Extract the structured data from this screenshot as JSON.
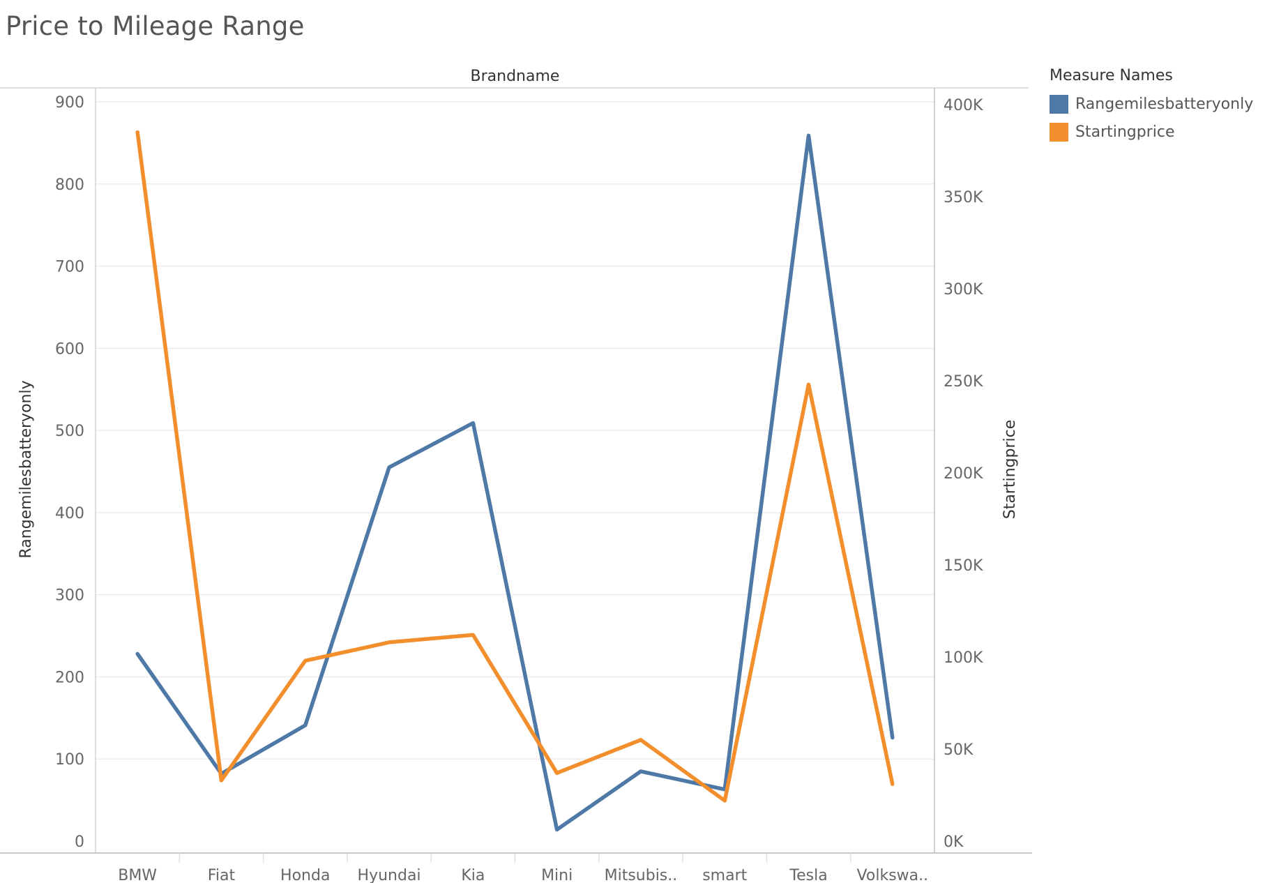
{
  "title": "Price to Mileage Range",
  "legend": {
    "title": "Measure Names",
    "items": [
      {
        "label": "Rangemilesbatteryonly",
        "color": "#4e79a7"
      },
      {
        "label": "Startingprice",
        "color": "#f28e2b"
      }
    ]
  },
  "chart_data": {
    "type": "line",
    "header": "Brandname",
    "categories": [
      "BMW",
      "Fiat",
      "Honda",
      "Hyundai",
      "Kia",
      "Mini",
      "Mitsubis..",
      "smart",
      "Tesla",
      "Volkswa.."
    ],
    "y_left": {
      "label": "Rangemilesbatteryonly",
      "range": [
        0,
        905
      ],
      "ticks": [
        0,
        100,
        200,
        300,
        400,
        500,
        600,
        700,
        800,
        900
      ],
      "tick_labels": [
        "0",
        "100",
        "200",
        "300",
        "400",
        "500",
        "600",
        "700",
        "800",
        "900"
      ]
    },
    "y_right": {
      "label": "Startingprice",
      "range": [
        0,
        395000
      ],
      "ticks": [
        0,
        50000,
        100000,
        150000,
        200000,
        250000,
        300000,
        350000,
        400000
      ],
      "tick_labels": [
        "0K",
        "50K",
        "100K",
        "150K",
        "200K",
        "250K",
        "300K",
        "350K",
        "400K"
      ]
    },
    "series": [
      {
        "name": "Rangemilesbatteryonly",
        "axis": "left",
        "color": "#4e79a7",
        "values": [
          228,
          82,
          141,
          455,
          509,
          14,
          85,
          63,
          859,
          126
        ]
      },
      {
        "name": "Startingprice",
        "axis": "right",
        "color": "#f28e2b",
        "values": [
          385000,
          33000,
          98000,
          108000,
          112000,
          37000,
          55000,
          22000,
          248000,
          31000
        ]
      }
    ],
    "grid": true,
    "legend_position": "right"
  }
}
